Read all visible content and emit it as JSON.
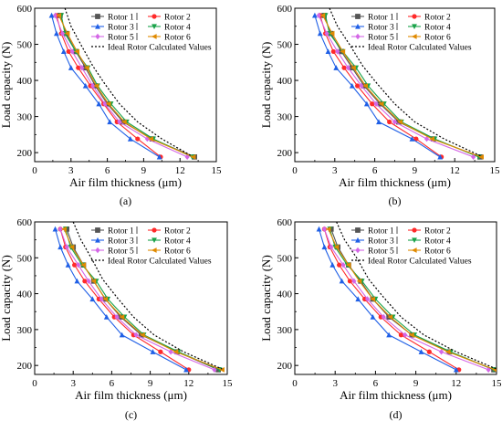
{
  "chart_data": [
    {
      "type": "line",
      "panel_label": "(a)",
      "xlabel": "Air film thickness (μm)",
      "ylabel": "Load capacity (N)",
      "xlim": [
        0,
        15
      ],
      "ylim": [
        175,
        600
      ],
      "xticks": [
        0,
        3,
        6,
        9,
        12,
        15
      ],
      "yticks": [
        200,
        300,
        400,
        500,
        600
      ],
      "legend_position": "top-right",
      "y": [
        580,
        530,
        480,
        435,
        385,
        335,
        285,
        238,
        188
      ],
      "series": [
        {
          "name": "Rotor 1",
          "color": "#555555",
          "marker": "square",
          "x": [
            2.1,
            2.6,
            3.4,
            4.2,
            5.0,
            6.0,
            7.3,
            9.7,
            13.2
          ]
        },
        {
          "name": "Rotor 2",
          "color": "#ff2a2a",
          "marker": "circle",
          "x": [
            1.8,
            2.2,
            2.8,
            3.6,
            4.6,
            5.7,
            6.8,
            8.5,
            10.4
          ]
        },
        {
          "name": "Rotor 3",
          "color": "#1f5fe6",
          "marker": "triangle-up",
          "x": [
            1.4,
            1.8,
            2.4,
            3.0,
            4.2,
            5.3,
            6.2,
            7.9,
            10.3
          ]
        },
        {
          "name": "Rotor 4",
          "color": "#1aa34a",
          "marker": "triangle-down",
          "x": [
            2.2,
            2.5,
            3.4,
            4.4,
            5.2,
            6.3,
            7.6,
            9.8,
            13.0
          ]
        },
        {
          "name": "Rotor 5",
          "color": "#d466e6",
          "marker": "diamond",
          "x": [
            1.7,
            2.3,
            3.1,
            3.9,
            4.8,
            5.8,
            7.0,
            9.3,
            12.6
          ]
        },
        {
          "name": "Rotor 6",
          "color": "#e08a00",
          "marker": "left-triangle",
          "x": [
            2.0,
            2.7,
            3.5,
            4.3,
            5.1,
            6.1,
            7.4,
            9.6,
            13.1
          ]
        },
        {
          "name": "Ideal Rotor Calculated Values",
          "color": "#000000",
          "marker": "none",
          "dashed": true,
          "x": [
            2.5,
            3.0,
            3.8,
            4.8,
            5.8,
            7.0,
            8.5,
            10.5,
            13.0
          ],
          "y": [
            600,
            550,
            500,
            440,
            390,
            335,
            285,
            238,
            190
          ]
        }
      ]
    },
    {
      "type": "line",
      "panel_label": "(b)",
      "xlabel": "Air film thickness (μm)",
      "ylabel": "Load capacity (N)",
      "xlim": [
        0,
        15
      ],
      "ylim": [
        175,
        600
      ],
      "xticks": [
        0,
        3,
        6,
        9,
        12,
        15
      ],
      "yticks": [
        200,
        300,
        400,
        500,
        600
      ],
      "legend_position": "top-right",
      "y": [
        580,
        530,
        480,
        435,
        385,
        335,
        285,
        238,
        188
      ],
      "series": [
        {
          "name": "Rotor 1",
          "color": "#555555",
          "marker": "square",
          "x": [
            2.2,
            2.7,
            3.5,
            4.3,
            5.2,
            6.4,
            7.8,
            10.4,
            13.9
          ]
        },
        {
          "name": "Rotor 2",
          "color": "#ff2a2a",
          "marker": "circle",
          "x": [
            1.9,
            2.3,
            2.9,
            3.7,
            4.7,
            5.8,
            7.1,
            9.1,
            11.0
          ]
        },
        {
          "name": "Rotor 3",
          "color": "#1f5fe6",
          "marker": "triangle-up",
          "x": [
            1.5,
            1.9,
            2.5,
            3.1,
            4.3,
            5.4,
            6.3,
            8.8,
            10.9
          ]
        },
        {
          "name": "Rotor 4",
          "color": "#1aa34a",
          "marker": "triangle-down",
          "x": [
            2.3,
            2.6,
            3.6,
            4.6,
            5.5,
            6.7,
            8.0,
            10.5,
            13.8
          ]
        },
        {
          "name": "Rotor 5",
          "color": "#d466e6",
          "marker": "diamond",
          "x": [
            1.8,
            2.4,
            3.2,
            4.0,
            5.0,
            6.1,
            7.5,
            9.9,
            13.4
          ]
        },
        {
          "name": "Rotor 6",
          "color": "#e08a00",
          "marker": "left-triangle",
          "x": [
            2.1,
            2.8,
            3.6,
            4.4,
            5.3,
            6.5,
            7.9,
            10.3,
            14.0
          ]
        },
        {
          "name": "Ideal Rotor Calculated Values",
          "color": "#000000",
          "marker": "none",
          "dashed": true,
          "x": [
            2.6,
            3.2,
            4.1,
            5.1,
            6.2,
            7.5,
            9.0,
            11.2,
            14.0
          ],
          "y": [
            600,
            550,
            500,
            440,
            390,
            335,
            285,
            238,
            190
          ]
        }
      ]
    },
    {
      "type": "line",
      "panel_label": "(c)",
      "xlabel": "Air film thickness (μm)",
      "ylabel": "Load capacity (N)",
      "xlim": [
        0,
        15
      ],
      "ylim": [
        175,
        600
      ],
      "xticks": [
        0,
        3,
        6,
        9,
        12,
        15
      ],
      "yticks": [
        200,
        300,
        400,
        500,
        600
      ],
      "legend_position": "top-right",
      "y": [
        580,
        530,
        480,
        435,
        385,
        335,
        285,
        238,
        188
      ],
      "series": [
        {
          "name": "Rotor 1",
          "color": "#555555",
          "marker": "square",
          "x": [
            2.5,
            3.0,
            3.8,
            4.6,
            5.5,
            6.7,
            8.3,
            11.1,
            14.3
          ]
        },
        {
          "name": "Rotor 2",
          "color": "#ff2a2a",
          "marker": "circle",
          "x": [
            2.0,
            2.4,
            3.1,
            3.9,
            5.0,
            6.2,
            7.7,
            9.8,
            12.0
          ]
        },
        {
          "name": "Rotor 3",
          "color": "#1f5fe6",
          "marker": "triangle-up",
          "x": [
            1.6,
            2.0,
            2.6,
            3.3,
            4.5,
            5.6,
            6.8,
            9.2,
            11.8
          ]
        },
        {
          "name": "Rotor 4",
          "color": "#1aa34a",
          "marker": "triangle-down",
          "x": [
            2.4,
            2.8,
            3.7,
            4.8,
            5.7,
            7.0,
            8.5,
            11.2,
            14.4
          ]
        },
        {
          "name": "Rotor 5",
          "color": "#d466e6",
          "marker": "diamond",
          "x": [
            2.0,
            2.5,
            3.4,
            4.2,
            5.2,
            6.4,
            7.9,
            10.6,
            14.0
          ]
        },
        {
          "name": "Rotor 6",
          "color": "#e08a00",
          "marker": "left-triangle",
          "x": [
            2.3,
            2.9,
            3.8,
            4.6,
            5.5,
            6.8,
            8.4,
            11.0,
            14.6
          ]
        },
        {
          "name": "Ideal Rotor Calculated Values",
          "color": "#000000",
          "marker": "none",
          "dashed": true,
          "x": [
            3.0,
            3.6,
            4.4,
            5.3,
            6.4,
            7.7,
            9.3,
            11.6,
            14.6
          ],
          "y": [
            600,
            550,
            500,
            440,
            390,
            335,
            285,
            238,
            190
          ]
        }
      ]
    },
    {
      "type": "line",
      "panel_label": "(d)",
      "xlabel": "Air film thickness (μm)",
      "ylabel": "Load capacity (N)",
      "xlim": [
        0,
        15
      ],
      "ylim": [
        175,
        600
      ],
      "xticks": [
        0,
        3,
        6,
        9,
        12,
        15
      ],
      "yticks": [
        200,
        300,
        400,
        500,
        600
      ],
      "legend_position": "top-right",
      "y": [
        580,
        530,
        480,
        435,
        385,
        335,
        285,
        238,
        188
      ],
      "series": [
        {
          "name": "Rotor 1",
          "color": "#555555",
          "marker": "square",
          "x": [
            2.7,
            3.2,
            4.0,
            4.9,
            5.8,
            7.0,
            8.7,
            11.5,
            14.8
          ]
        },
        {
          "name": "Rotor 2",
          "color": "#ff2a2a",
          "marker": "circle",
          "x": [
            2.2,
            2.6,
            3.3,
            4.1,
            5.2,
            6.4,
            7.9,
            10.0,
            12.2
          ]
        },
        {
          "name": "Rotor 3",
          "color": "#1f5fe6",
          "marker": "triangle-up",
          "x": [
            1.8,
            2.2,
            2.8,
            3.5,
            4.7,
            5.8,
            7.0,
            9.4,
            12.0
          ]
        },
        {
          "name": "Rotor 4",
          "color": "#1aa34a",
          "marker": "triangle-down",
          "x": [
            2.6,
            3.0,
            3.9,
            5.0,
            6.0,
            7.3,
            8.9,
            11.6,
            14.8
          ]
        },
        {
          "name": "Rotor 5",
          "color": "#d466e6",
          "marker": "diamond",
          "x": [
            2.2,
            2.7,
            3.6,
            4.4,
            5.4,
            6.6,
            8.2,
            10.9,
            14.4
          ]
        },
        {
          "name": "Rotor 6",
          "color": "#e08a00",
          "marker": "left-triangle",
          "x": [
            2.5,
            3.1,
            4.0,
            4.8,
            5.8,
            7.1,
            8.7,
            11.4,
            14.9
          ]
        },
        {
          "name": "Ideal Rotor Calculated Values",
          "color": "#000000",
          "marker": "none",
          "dashed": true,
          "x": [
            3.1,
            3.7,
            4.6,
            5.5,
            6.6,
            7.9,
            9.6,
            12.0,
            15.0
          ],
          "y": [
            600,
            550,
            500,
            440,
            390,
            335,
            285,
            238,
            190
          ]
        }
      ]
    }
  ]
}
